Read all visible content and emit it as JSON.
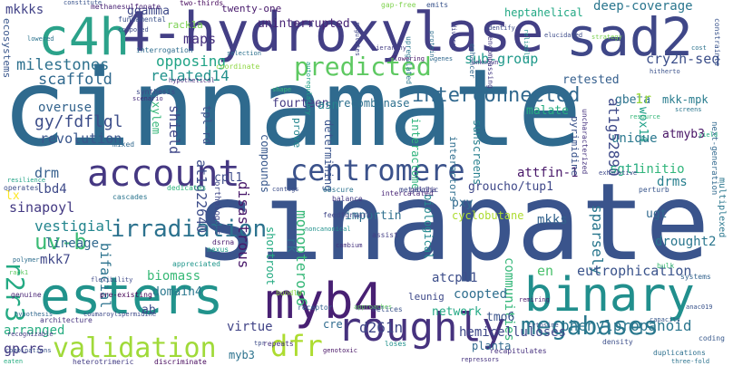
{
  "words": [
    {
      "text": "cinnamate",
      "color": "#2f6a8e"
    },
    {
      "text": "sinapate",
      "color": "#3a548c"
    },
    {
      "text": "4-hydroxylase",
      "color": "#433f85"
    },
    {
      "text": "sad2",
      "color": "#3f4788"
    },
    {
      "text": "c4h",
      "color": "#2ba28a"
    },
    {
      "text": "esters",
      "color": "#21938c"
    },
    {
      "text": "binary",
      "color": "#218f8d"
    },
    {
      "text": "myb4",
      "color": "#482073"
    },
    {
      "text": "roughly",
      "color": "#46327e"
    },
    {
      "text": "account",
      "color": "#453882"
    },
    {
      "text": "centromere",
      "color": "#3b528b"
    },
    {
      "text": "predicted",
      "color": "#5ec962"
    },
    {
      "text": "validation",
      "color": "#a0da39"
    },
    {
      "text": "megabases",
      "color": "#2a788e"
    },
    {
      "text": "dfr",
      "color": "#addc30"
    },
    {
      "text": "interconnected",
      "color": "#31688e"
    },
    {
      "text": "irradiation",
      "color": "#2c728e"
    },
    {
      "text": "uv-b",
      "color": "#3bbb75"
    },
    {
      "text": "r2r3",
      "color": "#24aa83"
    },
    {
      "text": "milestones",
      "color": "#2d718e"
    },
    {
      "text": "scaffold",
      "color": "#30698e"
    },
    {
      "text": "gy/fdflgl",
      "color": "#3d4e8a"
    },
    {
      "text": "overuse",
      "color": "#33638d"
    },
    {
      "text": "revolution",
      "color": "#39568c"
    },
    {
      "text": "related14",
      "color": "#21918c"
    },
    {
      "text": "opposing",
      "color": "#20a386"
    },
    {
      "text": "maps",
      "color": "#46307e"
    },
    {
      "text": "ggamma",
      "color": "#3e4989"
    },
    {
      "text": "mkkks",
      "color": "#414287"
    },
    {
      "text": "rack1a",
      "color": "#7ad151"
    },
    {
      "text": "uninterrupted",
      "color": "#482576"
    },
    {
      "text": "heptahelical",
      "color": "#22a884"
    },
    {
      "text": "deep-coverage",
      "color": "#2a768e"
    },
    {
      "text": "sub-group",
      "color": "#1f998a"
    },
    {
      "text": "retested",
      "color": "#355f8d"
    },
    {
      "text": "cry2h-seq",
      "color": "#3c4f8a"
    },
    {
      "text": "gbeta",
      "color": "#2c738e"
    },
    {
      "text": "mkk-mpk",
      "color": "#287c8e"
    },
    {
      "text": "1r",
      "color": "#9bd93c"
    },
    {
      "text": "wox14",
      "color": "#1fa088"
    },
    {
      "text": "at1g52890",
      "color": "#3e4a89"
    },
    {
      "text": "fourteen",
      "color": "#443b84"
    },
    {
      "text": "recombinase",
      "color": "#2d708e"
    },
    {
      "text": "asn",
      "color": "#26828e"
    },
    {
      "text": "malate",
      "color": "#26ad81"
    },
    {
      "text": "unique",
      "color": "#2a788e"
    },
    {
      "text": "atmyb3",
      "color": "#471365"
    },
    {
      "text": "sgt1",
      "color": "#27ad81"
    },
    {
      "text": "initio",
      "color": "#31b57b"
    },
    {
      "text": "drms",
      "color": "#277f8e"
    },
    {
      "text": "attfin-1",
      "color": "#481769"
    },
    {
      "text": "groucho/tup1",
      "color": "#3f4889"
    },
    {
      "text": "cpl1",
      "color": "#3e4c8a"
    },
    {
      "text": "disastrous",
      "color": "#48186a"
    },
    {
      "text": "compounds",
      "color": "#38588c"
    },
    {
      "text": "shield",
      "color": "#3f4788"
    },
    {
      "text": "xylem",
      "color": "#35b779"
    },
    {
      "text": "tpl-rd",
      "color": "#3b528b"
    },
    {
      "text": "drm",
      "color": "#355f8d"
    },
    {
      "text": "lbd4",
      "color": "#3e4a89"
    },
    {
      "text": "lx",
      "color": "#fde725"
    },
    {
      "text": "sinapoyl",
      "color": "#443a83"
    },
    {
      "text": "vestigial",
      "color": "#24868e"
    },
    {
      "text": "mkk7",
      "color": "#3f4788"
    },
    {
      "text": "lineage",
      "color": "#31688e"
    },
    {
      "text": "at1g22640",
      "color": "#3d4d8a"
    },
    {
      "text": "bifacial",
      "color": "#2c738e"
    },
    {
      "text": "biomass",
      "color": "#38b977"
    },
    {
      "text": "domain4",
      "color": "#2a788e"
    },
    {
      "text": "importin",
      "color": "#2e6f8e"
    },
    {
      "text": "pxy",
      "color": "#306a8e"
    },
    {
      "text": "cyclobutane",
      "color": "#addc30"
    },
    {
      "text": "mkks",
      "color": "#33638d"
    },
    {
      "text": "sparsely",
      "color": "#2a778e"
    },
    {
      "text": "drought2",
      "color": "#2a768e"
    },
    {
      "text": "ugt",
      "color": "#30698e"
    },
    {
      "text": "eutrophication",
      "color": "#3a538b"
    },
    {
      "text": "atcpl1",
      "color": "#3d4e8a"
    },
    {
      "text": "communities",
      "color": "#35b779"
    },
    {
      "text": "en",
      "color": "#4ac16d"
    },
    {
      "text": "coopted",
      "color": "#2e6e8e"
    },
    {
      "text": "network",
      "color": "#22a884"
    },
    {
      "text": "monopteros6",
      "color": "#37b878"
    },
    {
      "text": "rk",
      "color": "#2e6f8e"
    },
    {
      "text": "tmo6",
      "color": "#3a548c"
    },
    {
      "text": "phenylpropanoid",
      "color": "#2a768e"
    },
    {
      "text": "hemicelluloses",
      "color": "#3f4889"
    },
    {
      "text": "d261n",
      "color": "#3f4788"
    },
    {
      "text": "planta",
      "color": "#306a8e"
    },
    {
      "text": "gpcrs",
      "color": "#443a83"
    },
    {
      "text": "arranged",
      "color": "#27ad81"
    },
    {
      "text": "ab",
      "color": "#3d4d8a"
    },
    {
      "text": "virtue",
      "color": "#414487"
    },
    {
      "text": "myb3",
      "color": "#2c728e"
    },
    {
      "text": "cre",
      "color": "#2f6b8e"
    },
    {
      "text": "emits",
      "color": "#3a548c"
    },
    {
      "text": "approaches",
      "color": "#5ec962"
    },
    {
      "text": "biological",
      "color": "#23898e"
    },
    {
      "text": "interactors",
      "color": "#2e6e8e"
    },
    {
      "text": "interactome",
      "color": "#2fb47c"
    },
    {
      "text": "sunscreens",
      "color": "#27808e"
    },
    {
      "text": "pyrimidine",
      "color": "#3a538b"
    },
    {
      "text": "determining",
      "color": "#3a548c"
    },
    {
      "text": "prove",
      "color": "#24868e"
    },
    {
      "text": "shortroot",
      "color": "#25ab82"
    },
    {
      "text": "methanesulfonate",
      "color": "#482173"
    },
    {
      "text": "fundamental",
      "color": "#3b518b"
    },
    {
      "text": "twenty-one",
      "color": "#481a6c"
    },
    {
      "text": "two-thirds",
      "color": "#46085c"
    },
    {
      "text": "ecosystems",
      "color": "#39568c"
    },
    {
      "text": "gap-free",
      "color": "#7fd34e"
    },
    {
      "text": "interrogation",
      "color": "#2e6d8e"
    },
    {
      "text": "coordinate",
      "color": "#8fd744"
    },
    {
      "text": "synthesis",
      "color": "#3e4989"
    },
    {
      "text": "scenario",
      "color": "#472d7b"
    },
    {
      "text": "hierarchy",
      "color": "#433d84"
    },
    {
      "text": "repressors",
      "color": "#46337f"
    },
    {
      "text": "helices",
      "color": "#3b528b"
    },
    {
      "text": "receptor",
      "color": "#33628d"
    },
    {
      "text": "feedforward",
      "color": "#3f4788"
    },
    {
      "text": "intercalated",
      "color": "#482576"
    },
    {
      "text": "galpha",
      "color": "#443983"
    },
    {
      "text": "leunig",
      "color": "#3e4989"
    },
    {
      "text": "assist",
      "color": "#433e85"
    },
    {
      "text": "nexus",
      "color": "#1fa188"
    },
    {
      "text": "dsrna",
      "color": "#481b6d"
    },
    {
      "text": "mixed",
      "color": "#31688e"
    },
    {
      "text": "pre-existing",
      "color": "#440154"
    },
    {
      "text": "genuine",
      "color": "#482475"
    },
    {
      "text": "tpr",
      "color": "#3e4c8a"
    },
    {
      "text": "repeats",
      "color": "#46317e"
    },
    {
      "text": "loses",
      "color": "#21918c"
    },
    {
      "text": "density",
      "color": "#3c4f8a"
    },
    {
      "text": "coding",
      "color": "#38598c"
    },
    {
      "text": "bulk",
      "color": "#3dbc74"
    },
    {
      "text": "systems",
      "color": "#33638d"
    },
    {
      "text": "next-generation",
      "color": "#31688e"
    },
    {
      "text": "multiplexed",
      "color": "#2a778e"
    },
    {
      "text": "perturb",
      "color": "#39568c"
    },
    {
      "text": "metabolic",
      "color": "#3e4a89"
    },
    {
      "text": "obscure",
      "color": "#2c738e"
    },
    {
      "text": "balance",
      "color": "#443983"
    },
    {
      "text": "dedicates",
      "color": "#2fb47c"
    },
    {
      "text": "cascades",
      "color": "#2b758e"
    },
    {
      "text": "operates",
      "color": "#3d4d8a"
    },
    {
      "text": "resilience",
      "color": "#20a386"
    },
    {
      "text": "appreciated",
      "color": "#1f968b"
    },
    {
      "text": "flexibility",
      "color": "#3e4a89"
    },
    {
      "text": "architecture",
      "color": "#46337f"
    },
    {
      "text": "heterotrimeric",
      "color": "#433d84"
    },
    {
      "text": "discriminate",
      "color": "#46085c"
    },
    {
      "text": "recapitulates",
      "color": "#46307e"
    },
    {
      "text": "cytosine",
      "color": "#3b528b"
    },
    {
      "text": "duplications",
      "color": "#2d708e"
    },
    {
      "text": "three-fold",
      "color": "#2c738e"
    },
    {
      "text": "anac019",
      "color": "#3a548c"
    },
    {
      "text": "capacity",
      "color": "#38588c"
    },
    {
      "text": "remiring",
      "color": "#481a6c"
    },
    {
      "text": "bundle",
      "color": "#8fd744"
    },
    {
      "text": "cambium",
      "color": "#46337f"
    },
    {
      "text": "noncanonical",
      "color": "#21918c"
    },
    {
      "text": "genotoxic",
      "color": "#471365"
    },
    {
      "text": "rack1",
      "color": "#5ec962"
    },
    {
      "text": "polymer",
      "color": "#2e6e8e"
    },
    {
      "text": "recognizable",
      "color": "#443b84"
    },
    {
      "text": "combinations",
      "color": "#3a538b"
    },
    {
      "text": "hypothesis",
      "color": "#31688e"
    },
    {
      "text": "coumaroylspermidine",
      "color": "#3e4a89"
    },
    {
      "text": "eaten",
      "color": "#26ad81"
    },
    {
      "text": "orthologous",
      "color": "#3f4788"
    },
    {
      "text": "upregulated",
      "color": "#2a788e"
    },
    {
      "text": "enhancer",
      "color": "#31688e"
    },
    {
      "text": "encompassing",
      "color": "#443a83"
    },
    {
      "text": "hitherto",
      "color": "#3b528b"
    },
    {
      "text": "yield",
      "color": "#27ad81"
    },
    {
      "text": "resource",
      "color": "#35b779"
    },
    {
      "text": "screens",
      "color": "#2a768e"
    },
    {
      "text": "exhaustive",
      "color": "#3e4989"
    },
    {
      "text": "uncharacterized",
      "color": "#46337f"
    },
    {
      "text": "constraints",
      "color": "#3a548c"
    },
    {
      "text": "cost",
      "color": "#2c728e"
    },
    {
      "text": "strategy",
      "color": "#7ad151"
    },
    {
      "text": "elucidated",
      "color": "#3e4c8a"
    },
    {
      "text": "unknown",
      "color": "#443983"
    },
    {
      "text": "proteins",
      "color": "#2e6f8e"
    },
    {
      "text": "reliable",
      "color": "#21918c"
    },
    {
      "text": "diverse",
      "color": "#414487"
    },
    {
      "text": "identify",
      "color": "#3d4d8a"
    },
    {
      "text": "flowering",
      "color": "#481769"
    },
    {
      "text": "regulates",
      "color": "#3f4788"
    },
    {
      "text": "genes",
      "color": "#31688e"
    },
    {
      "text": "lowered",
      "color": "#2c738e"
    },
    {
      "text": "constitute",
      "color": "#3a548c"
    },
    {
      "text": "composed",
      "color": "#3e4a89"
    },
    {
      "text": "hypothetical",
      "color": "#46307e"
    },
    {
      "text": "shape",
      "color": "#35b779"
    },
    {
      "text": "autoregulatory",
      "color": "#1fa088"
    },
    {
      "text": "contigs",
      "color": "#3d4e8a"
    },
    {
      "text": "selection",
      "color": "#2d718e"
    }
  ]
}
